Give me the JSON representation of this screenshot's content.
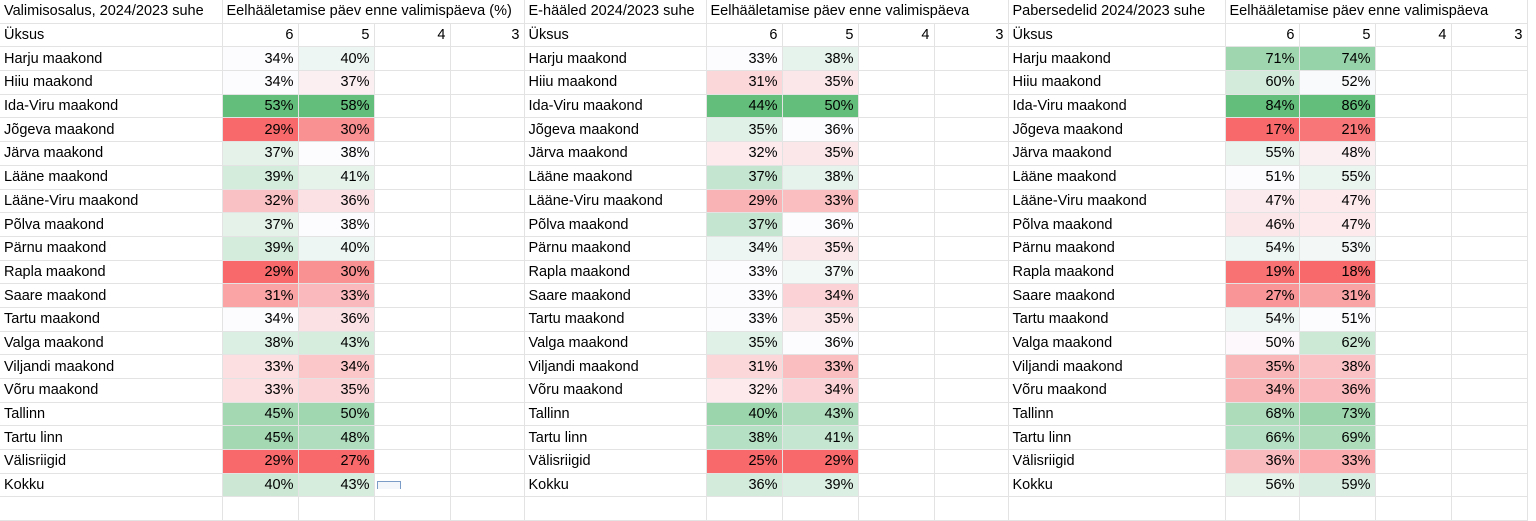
{
  "row1": {
    "A": "Valimisosalus, 2024/2023 suhe",
    "B": "Eelhääletamise päev enne valimispäeva (%)",
    "G": "E-hääled 2024/2023 suhe",
    "H": "Eelhääletamise päev enne valimispäeva",
    "M": "Pabersedelid 2024/2023 suhe",
    "N": "Eelhääletamise päev enne valimispäeva"
  },
  "row2": {
    "label": "Üksus",
    "days": [
      "6",
      "5",
      "4",
      "3"
    ]
  },
  "rows": [
    {
      "label": "Harju maakond",
      "t": [
        "34%",
        "40%"
      ],
      "e": [
        "33%",
        "38%"
      ],
      "p": [
        "71%",
        "74%"
      ]
    },
    {
      "label": "Hiiu maakond",
      "t": [
        "34%",
        "37%"
      ],
      "e": [
        "31%",
        "35%"
      ],
      "p": [
        "60%",
        "52%"
      ]
    },
    {
      "label": "Ida-Viru maakond",
      "t": [
        "53%",
        "58%"
      ],
      "e": [
        "44%",
        "50%"
      ],
      "p": [
        "84%",
        "86%"
      ]
    },
    {
      "label": "Jõgeva maakond",
      "t": [
        "29%",
        "30%"
      ],
      "e": [
        "35%",
        "36%"
      ],
      "p": [
        "17%",
        "21%"
      ]
    },
    {
      "label": "Järva maakond",
      "t": [
        "37%",
        "38%"
      ],
      "e": [
        "32%",
        "35%"
      ],
      "p": [
        "55%",
        "48%"
      ]
    },
    {
      "label": "Lääne maakond",
      "t": [
        "39%",
        "41%"
      ],
      "e": [
        "37%",
        "38%"
      ],
      "p": [
        "51%",
        "55%"
      ]
    },
    {
      "label": "Lääne-Viru maakond",
      "t": [
        "32%",
        "36%"
      ],
      "e": [
        "29%",
        "33%"
      ],
      "p": [
        "47%",
        "47%"
      ]
    },
    {
      "label": "Põlva maakond",
      "t": [
        "37%",
        "38%"
      ],
      "e": [
        "37%",
        "36%"
      ],
      "p": [
        "46%",
        "47%"
      ]
    },
    {
      "label": "Pärnu maakond",
      "t": [
        "39%",
        "40%"
      ],
      "e": [
        "34%",
        "35%"
      ],
      "p": [
        "54%",
        "53%"
      ]
    },
    {
      "label": "Rapla maakond",
      "t": [
        "29%",
        "30%"
      ],
      "e": [
        "33%",
        "37%"
      ],
      "p": [
        "19%",
        "18%"
      ]
    },
    {
      "label": "Saare maakond",
      "t": [
        "31%",
        "33%"
      ],
      "e": [
        "33%",
        "34%"
      ],
      "p": [
        "27%",
        "31%"
      ]
    },
    {
      "label": "Tartu maakond",
      "t": [
        "34%",
        "36%"
      ],
      "e": [
        "33%",
        "35%"
      ],
      "p": [
        "54%",
        "51%"
      ]
    },
    {
      "label": "Valga maakond",
      "t": [
        "38%",
        "43%"
      ],
      "e": [
        "35%",
        "36%"
      ],
      "p": [
        "50%",
        "62%"
      ]
    },
    {
      "label": "Viljandi maakond",
      "t": [
        "33%",
        "34%"
      ],
      "e": [
        "31%",
        "33%"
      ],
      "p": [
        "35%",
        "38%"
      ]
    },
    {
      "label": "Võru maakond",
      "t": [
        "33%",
        "35%"
      ],
      "e": [
        "32%",
        "34%"
      ],
      "p": [
        "34%",
        "36%"
      ]
    },
    {
      "label": "Tallinn",
      "t": [
        "45%",
        "50%"
      ],
      "e": [
        "40%",
        "43%"
      ],
      "p": [
        "68%",
        "73%"
      ]
    },
    {
      "label": "Tartu linn",
      "t": [
        "45%",
        "48%"
      ],
      "e": [
        "38%",
        "41%"
      ],
      "p": [
        "66%",
        "69%"
      ]
    },
    {
      "label": "Välisriigid",
      "t": [
        "29%",
        "27%"
      ],
      "e": [
        "25%",
        "29%"
      ],
      "p": [
        "36%",
        "33%"
      ]
    },
    {
      "label": "Kokku",
      "t": [
        "40%",
        "43%"
      ],
      "e": [
        "36%",
        "39%"
      ],
      "p": [
        "56%",
        "59%"
      ]
    }
  ],
  "colors": {
    "low": "#f8696b",
    "mid": "#fcfcff",
    "high": "#63be7b",
    "gridline": "#e3e3e3"
  }
}
